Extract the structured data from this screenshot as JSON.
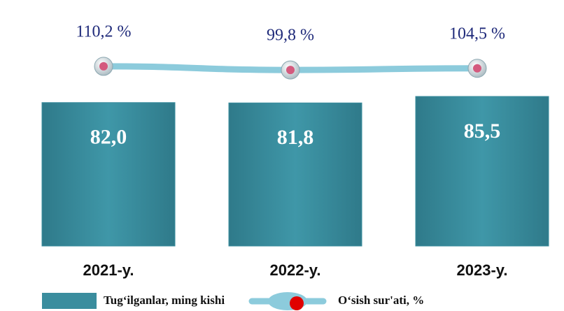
{
  "chart_data": {
    "type": "bar",
    "categories": [
      "2021-y.",
      "2022-y.",
      "2023-y."
    ],
    "series": [
      {
        "name": "Tug‘ilganlar, ming kishi",
        "type": "bar",
        "color": "#3a8d9e",
        "values": [
          82.0,
          81.8,
          85.5
        ],
        "value_labels": [
          "82,0",
          "81,8",
          "85,5"
        ]
      },
      {
        "name": "O‘sish sur'ati, %",
        "type": "line",
        "axis": "y2",
        "color": "#8ccbdc",
        "marker_color": "#d45a7e",
        "values": [
          110.2,
          99.8,
          104.5
        ],
        "value_labels": [
          "110,2 %",
          "99,8 %",
          "104,5 %"
        ]
      }
    ]
  }
}
